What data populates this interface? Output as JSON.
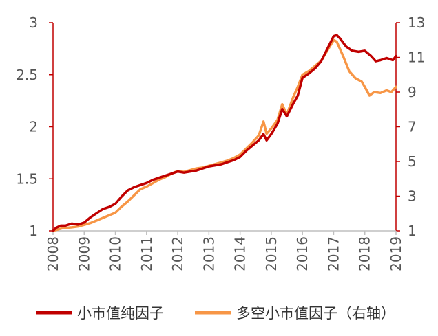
{
  "chart_data": {
    "type": "line",
    "title": "",
    "xlabel": "",
    "ylabel_left": "",
    "ylabel_right": "",
    "x_ticks": [
      "2008",
      "2009",
      "2010",
      "2011",
      "2012",
      "2013",
      "2014",
      "2015",
      "2016",
      "2017",
      "2018",
      "2019"
    ],
    "xlim": [
      2008,
      2019
    ],
    "y_left_ticks": [
      "1",
      "1.5",
      "2",
      "2.5",
      "3"
    ],
    "ylim_left": [
      1,
      3
    ],
    "y_right_ticks": [
      "1",
      "3",
      "5",
      "7",
      "9",
      "11",
      "13"
    ],
    "ylim_right": [
      1,
      13
    ],
    "grid": false,
    "legend_position": "bottom",
    "colors": {
      "axis_red": "#C00000",
      "axis_gray": "#BFBFBF"
    },
    "series": [
      {
        "name": "小市值纯因子",
        "axis": "left",
        "color": "#C00000",
        "points": [
          [
            2008.0,
            1.0
          ],
          [
            2008.1,
            1.03
          ],
          [
            2008.25,
            1.05
          ],
          [
            2008.4,
            1.05
          ],
          [
            2008.6,
            1.07
          ],
          [
            2008.8,
            1.06
          ],
          [
            2009.0,
            1.08
          ],
          [
            2009.2,
            1.13
          ],
          [
            2009.4,
            1.17
          ],
          [
            2009.6,
            1.21
          ],
          [
            2009.8,
            1.23
          ],
          [
            2010.0,
            1.26
          ],
          [
            2010.2,
            1.33
          ],
          [
            2010.4,
            1.39
          ],
          [
            2010.6,
            1.42
          ],
          [
            2010.8,
            1.44
          ],
          [
            2011.0,
            1.46
          ],
          [
            2011.2,
            1.49
          ],
          [
            2011.4,
            1.51
          ],
          [
            2011.6,
            1.53
          ],
          [
            2011.8,
            1.55
          ],
          [
            2012.0,
            1.57
          ],
          [
            2012.2,
            1.56
          ],
          [
            2012.4,
            1.57
          ],
          [
            2012.6,
            1.58
          ],
          [
            2012.8,
            1.6
          ],
          [
            2013.0,
            1.62
          ],
          [
            2013.2,
            1.63
          ],
          [
            2013.4,
            1.64
          ],
          [
            2013.6,
            1.66
          ],
          [
            2013.8,
            1.68
          ],
          [
            2014.0,
            1.71
          ],
          [
            2014.2,
            1.77
          ],
          [
            2014.4,
            1.82
          ],
          [
            2014.6,
            1.87
          ],
          [
            2014.75,
            1.93
          ],
          [
            2014.85,
            1.87
          ],
          [
            2015.0,
            1.93
          ],
          [
            2015.2,
            2.03
          ],
          [
            2015.35,
            2.17
          ],
          [
            2015.5,
            2.1
          ],
          [
            2015.7,
            2.22
          ],
          [
            2015.85,
            2.3
          ],
          [
            2016.0,
            2.47
          ],
          [
            2016.2,
            2.51
          ],
          [
            2016.4,
            2.56
          ],
          [
            2016.6,
            2.63
          ],
          [
            2016.8,
            2.75
          ],
          [
            2017.0,
            2.87
          ],
          [
            2017.1,
            2.88
          ],
          [
            2017.2,
            2.85
          ],
          [
            2017.4,
            2.77
          ],
          [
            2017.6,
            2.73
          ],
          [
            2017.8,
            2.72
          ],
          [
            2018.0,
            2.73
          ],
          [
            2018.2,
            2.68
          ],
          [
            2018.35,
            2.63
          ],
          [
            2018.5,
            2.64
          ],
          [
            2018.7,
            2.66
          ],
          [
            2018.9,
            2.64
          ],
          [
            2019.0,
            2.68
          ]
        ]
      },
      {
        "name": "多空小市值因子（右轴）",
        "axis": "right",
        "color": "#F79646",
        "points": [
          [
            2008.0,
            1.0
          ],
          [
            2008.3,
            1.15
          ],
          [
            2008.6,
            1.2
          ],
          [
            2008.8,
            1.25
          ],
          [
            2009.0,
            1.35
          ],
          [
            2009.2,
            1.45
          ],
          [
            2009.4,
            1.6
          ],
          [
            2009.6,
            1.75
          ],
          [
            2009.8,
            1.9
          ],
          [
            2010.0,
            2.05
          ],
          [
            2010.2,
            2.4
          ],
          [
            2010.4,
            2.7
          ],
          [
            2010.6,
            3.05
          ],
          [
            2010.8,
            3.4
          ],
          [
            2011.0,
            3.55
          ],
          [
            2011.2,
            3.75
          ],
          [
            2011.4,
            3.95
          ],
          [
            2011.6,
            4.1
          ],
          [
            2011.8,
            4.3
          ],
          [
            2012.0,
            4.45
          ],
          [
            2012.2,
            4.4
          ],
          [
            2012.4,
            4.5
          ],
          [
            2012.6,
            4.6
          ],
          [
            2012.8,
            4.65
          ],
          [
            2013.0,
            4.75
          ],
          [
            2013.2,
            4.85
          ],
          [
            2013.4,
            4.95
          ],
          [
            2013.6,
            5.05
          ],
          [
            2013.8,
            5.2
          ],
          [
            2014.0,
            5.4
          ],
          [
            2014.2,
            5.75
          ],
          [
            2014.4,
            6.1
          ],
          [
            2014.6,
            6.5
          ],
          [
            2014.75,
            7.3
          ],
          [
            2014.85,
            6.6
          ],
          [
            2015.0,
            6.9
          ],
          [
            2015.2,
            7.4
          ],
          [
            2015.35,
            8.3
          ],
          [
            2015.5,
            7.7
          ],
          [
            2015.7,
            8.7
          ],
          [
            2015.85,
            9.3
          ],
          [
            2016.0,
            10.0
          ],
          [
            2016.2,
            10.2
          ],
          [
            2016.4,
            10.5
          ],
          [
            2016.6,
            10.8
          ],
          [
            2016.8,
            11.4
          ],
          [
            2017.0,
            12.0
          ],
          [
            2017.1,
            11.9
          ],
          [
            2017.3,
            11.1
          ],
          [
            2017.5,
            10.2
          ],
          [
            2017.7,
            9.8
          ],
          [
            2017.9,
            9.6
          ],
          [
            2018.0,
            9.3
          ],
          [
            2018.15,
            8.8
          ],
          [
            2018.3,
            9.0
          ],
          [
            2018.5,
            8.95
          ],
          [
            2018.7,
            9.1
          ],
          [
            2018.85,
            9.0
          ],
          [
            2019.0,
            9.3
          ]
        ]
      }
    ]
  }
}
